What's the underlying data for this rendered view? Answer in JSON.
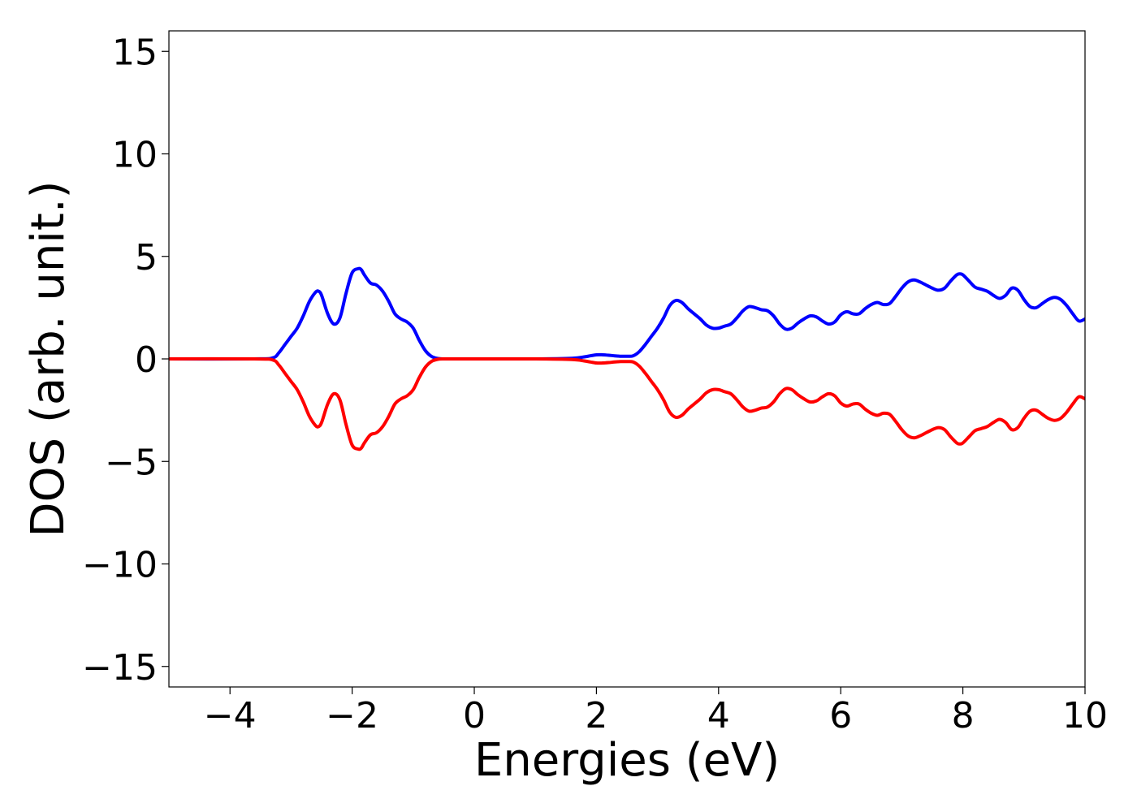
{
  "chart_data": {
    "type": "line",
    "title": "",
    "xlabel": "Energies (eV)",
    "ylabel": "DOS (arb. unit.)",
    "xlim": [
      -5,
      10
    ],
    "ylim": [
      -16,
      16
    ],
    "x_ticks": [
      -4,
      -2,
      0,
      2,
      4,
      6,
      8,
      10
    ],
    "x_tick_labels": [
      "−4",
      "−2",
      "0",
      "2",
      "4",
      "6",
      "8",
      "10"
    ],
    "y_ticks": [
      -15,
      -10,
      -5,
      0,
      5,
      10,
      15
    ],
    "y_tick_labels": [
      "−15",
      "−10",
      "−5",
      "0",
      "5",
      "10",
      "15"
    ],
    "grid": false,
    "legend": "none",
    "series": [
      {
        "color": "#0000ff",
        "x": [
          -5.0,
          -3.6,
          -3.3,
          -3.2,
          -3.1,
          -3.0,
          -2.9,
          -2.8,
          -2.7,
          -2.6,
          -2.55,
          -2.5,
          -2.4,
          -2.3,
          -2.2,
          -2.1,
          -2.0,
          -1.9,
          -1.85,
          -1.8,
          -1.7,
          -1.6,
          -1.5,
          -1.4,
          -1.3,
          -1.2,
          -1.1,
          -1.0,
          -0.9,
          -0.8,
          -0.7,
          -0.6,
          -0.5,
          -0.3,
          0.0,
          1.0,
          1.6,
          1.8,
          1.9,
          2.0,
          2.1,
          2.2,
          2.3,
          2.4,
          2.5,
          2.6,
          2.7,
          2.8,
          2.9,
          3.0,
          3.1,
          3.2,
          3.3,
          3.4,
          3.5,
          3.6,
          3.7,
          3.8,
          3.9,
          4.0,
          4.1,
          4.2,
          4.3,
          4.4,
          4.5,
          4.6,
          4.7,
          4.8,
          4.9,
          5.0,
          5.1,
          5.2,
          5.3,
          5.4,
          5.5,
          5.6,
          5.7,
          5.8,
          5.9,
          6.0,
          6.1,
          6.2,
          6.3,
          6.4,
          6.5,
          6.6,
          6.7,
          6.8,
          6.9,
          7.0,
          7.1,
          7.2,
          7.3,
          7.4,
          7.5,
          7.6,
          7.7,
          7.8,
          7.9,
          7.95,
          8.0,
          8.1,
          8.2,
          8.3,
          8.4,
          8.5,
          8.6,
          8.7,
          8.8,
          8.9,
          9.0,
          9.1,
          9.2,
          9.3,
          9.4,
          9.5,
          9.6,
          9.7,
          9.8,
          9.9,
          10.0
        ],
        "y": [
          0.0,
          0.0,
          0.05,
          0.3,
          0.7,
          1.1,
          1.5,
          2.1,
          2.8,
          3.25,
          3.3,
          3.1,
          2.2,
          1.7,
          2.0,
          3.2,
          4.2,
          4.4,
          4.35,
          4.1,
          3.7,
          3.6,
          3.3,
          2.8,
          2.2,
          1.95,
          1.8,
          1.5,
          0.9,
          0.4,
          0.12,
          0.02,
          0.0,
          0.0,
          0.0,
          0.0,
          0.03,
          0.1,
          0.15,
          0.2,
          0.2,
          0.18,
          0.15,
          0.13,
          0.13,
          0.15,
          0.35,
          0.7,
          1.1,
          1.5,
          2.0,
          2.6,
          2.85,
          2.75,
          2.45,
          2.2,
          1.95,
          1.65,
          1.5,
          1.5,
          1.6,
          1.7,
          2.0,
          2.35,
          2.55,
          2.5,
          2.4,
          2.35,
          2.1,
          1.7,
          1.45,
          1.5,
          1.75,
          1.95,
          2.1,
          2.05,
          1.85,
          1.7,
          1.8,
          2.15,
          2.3,
          2.2,
          2.2,
          2.45,
          2.65,
          2.75,
          2.65,
          2.7,
          3.05,
          3.45,
          3.75,
          3.85,
          3.75,
          3.6,
          3.45,
          3.35,
          3.45,
          3.8,
          4.1,
          4.15,
          4.1,
          3.8,
          3.5,
          3.4,
          3.3,
          3.1,
          2.95,
          3.1,
          3.45,
          3.35,
          2.9,
          2.55,
          2.5,
          2.7,
          2.9,
          3.0,
          2.9,
          2.6,
          2.2,
          1.85,
          1.95
        ]
      },
      {
        "color": "#ff0000",
        "x": [
          -5.0,
          -3.6,
          -3.3,
          -3.2,
          -3.1,
          -3.0,
          -2.9,
          -2.8,
          -2.7,
          -2.6,
          -2.55,
          -2.5,
          -2.4,
          -2.3,
          -2.2,
          -2.1,
          -2.0,
          -1.9,
          -1.85,
          -1.8,
          -1.7,
          -1.6,
          -1.5,
          -1.4,
          -1.3,
          -1.2,
          -1.1,
          -1.0,
          -0.9,
          -0.8,
          -0.7,
          -0.6,
          -0.5,
          -0.3,
          0.0,
          1.0,
          1.6,
          1.8,
          1.9,
          2.0,
          2.1,
          2.2,
          2.3,
          2.4,
          2.5,
          2.6,
          2.7,
          2.8,
          2.9,
          3.0,
          3.1,
          3.2,
          3.3,
          3.4,
          3.5,
          3.6,
          3.7,
          3.8,
          3.9,
          4.0,
          4.1,
          4.2,
          4.3,
          4.4,
          4.5,
          4.6,
          4.7,
          4.8,
          4.9,
          5.0,
          5.1,
          5.2,
          5.3,
          5.4,
          5.5,
          5.6,
          5.7,
          5.8,
          5.9,
          6.0,
          6.1,
          6.2,
          6.3,
          6.4,
          6.5,
          6.6,
          6.7,
          6.8,
          6.9,
          7.0,
          7.1,
          7.2,
          7.3,
          7.4,
          7.5,
          7.6,
          7.7,
          7.8,
          7.9,
          7.95,
          8.0,
          8.1,
          8.2,
          8.3,
          8.4,
          8.5,
          8.6,
          8.7,
          8.8,
          8.9,
          9.0,
          9.1,
          9.2,
          9.3,
          9.4,
          9.5,
          9.6,
          9.7,
          9.8,
          9.9,
          10.0
        ],
        "y": [
          0.0,
          0.0,
          -0.05,
          -0.3,
          -0.7,
          -1.1,
          -1.5,
          -2.1,
          -2.8,
          -3.25,
          -3.3,
          -3.1,
          -2.2,
          -1.7,
          -2.0,
          -3.2,
          -4.2,
          -4.4,
          -4.35,
          -4.1,
          -3.7,
          -3.6,
          -3.3,
          -2.8,
          -2.2,
          -1.95,
          -1.8,
          -1.5,
          -0.9,
          -0.4,
          -0.12,
          -0.02,
          0.0,
          0.0,
          0.0,
          0.0,
          -0.03,
          -0.1,
          -0.15,
          -0.2,
          -0.2,
          -0.18,
          -0.15,
          -0.13,
          -0.13,
          -0.15,
          -0.35,
          -0.7,
          -1.1,
          -1.5,
          -2.0,
          -2.6,
          -2.85,
          -2.75,
          -2.45,
          -2.2,
          -1.95,
          -1.65,
          -1.5,
          -1.5,
          -1.6,
          -1.7,
          -2.0,
          -2.35,
          -2.55,
          -2.5,
          -2.4,
          -2.35,
          -2.1,
          -1.7,
          -1.45,
          -1.5,
          -1.75,
          -1.95,
          -2.1,
          -2.05,
          -1.85,
          -1.7,
          -1.8,
          -2.15,
          -2.3,
          -2.2,
          -2.2,
          -2.45,
          -2.65,
          -2.75,
          -2.65,
          -2.7,
          -3.05,
          -3.45,
          -3.75,
          -3.85,
          -3.75,
          -3.6,
          -3.45,
          -3.35,
          -3.45,
          -3.8,
          -4.1,
          -4.15,
          -4.1,
          -3.8,
          -3.5,
          -3.4,
          -3.3,
          -3.1,
          -2.95,
          -3.1,
          -3.45,
          -3.35,
          -2.9,
          -2.55,
          -2.5,
          -2.7,
          -2.9,
          -3.0,
          -2.9,
          -2.6,
          -2.2,
          -1.85,
          -1.95
        ]
      }
    ]
  }
}
